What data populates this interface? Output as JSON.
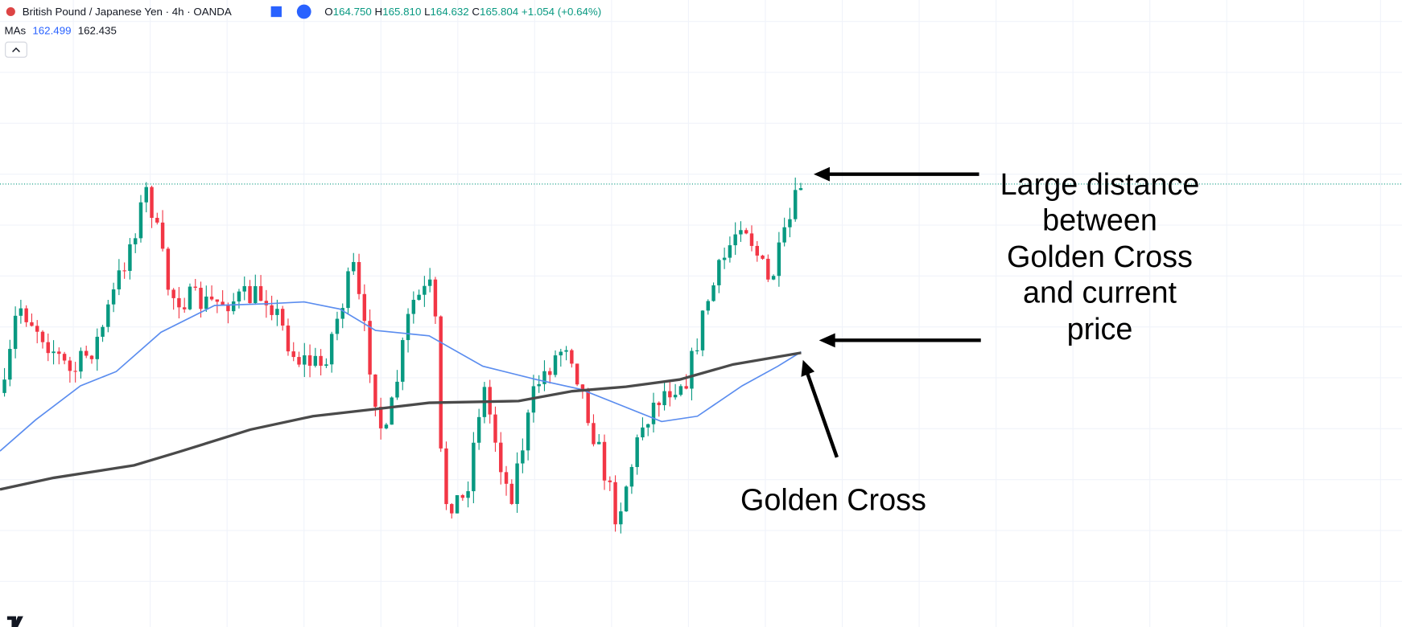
{
  "header": {
    "symbol": "British Pound / Japanese Yen · 4h · OANDA",
    "ohlc": [
      {
        "label": "O",
        "value": "164.750"
      },
      {
        "label": "H",
        "value": "165.810"
      },
      {
        "label": "L",
        "value": "164.632"
      },
      {
        "label": "C",
        "value": "165.804"
      }
    ],
    "change": "+1.054 (+0.64%)"
  },
  "indicator": {
    "name": "MAs",
    "values": [
      "162.499",
      "162.435"
    ]
  },
  "annotations": {
    "distance": [
      "Large distance",
      "between",
      "Golden Cross",
      "and current",
      "price"
    ],
    "cross": "Golden Cross"
  }
}
